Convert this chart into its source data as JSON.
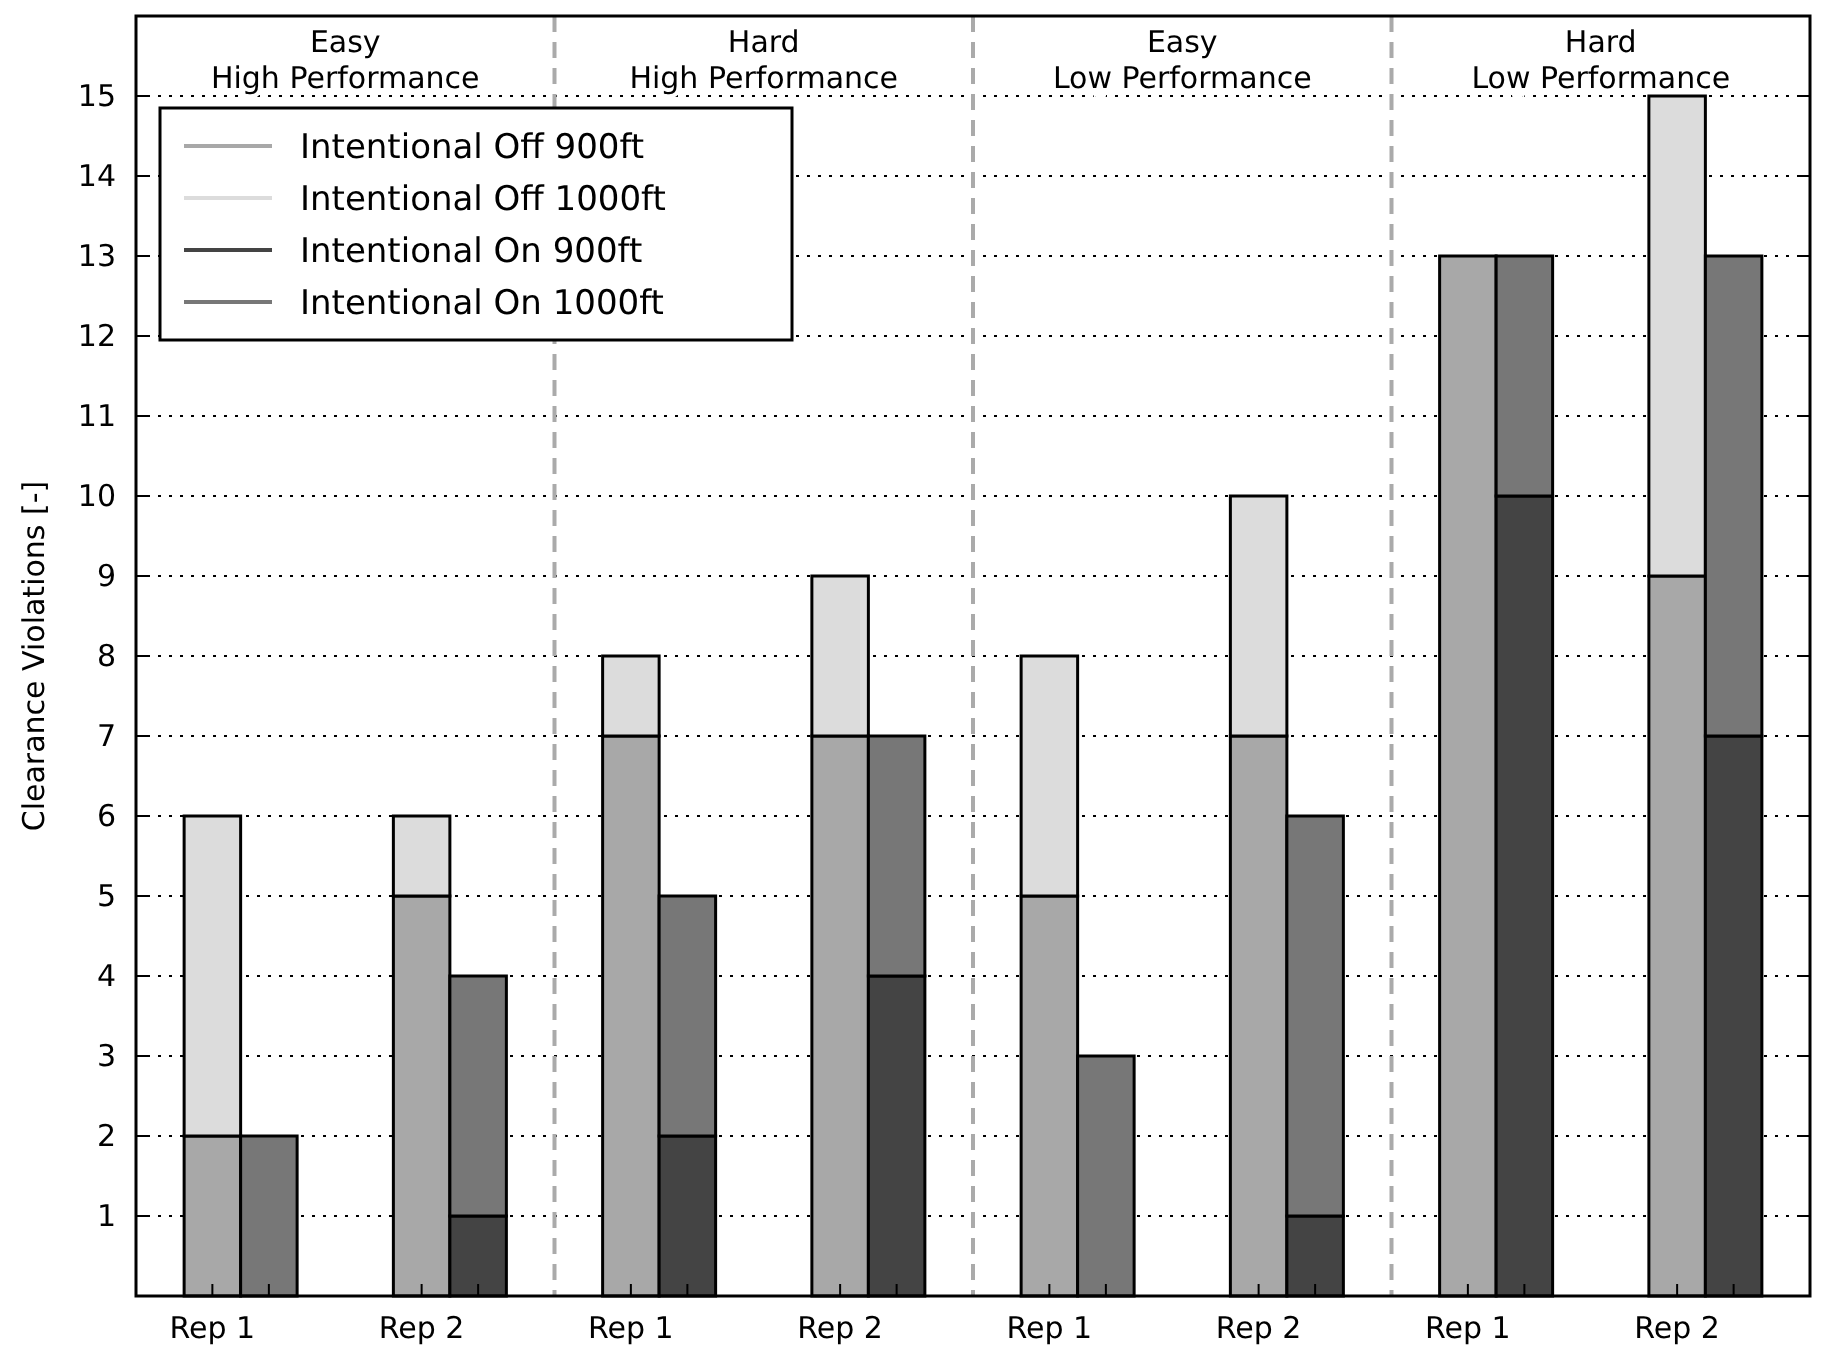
{
  "chart_data": {
    "type": "bar",
    "stacked": true,
    "ylabel": "Clearance Violations [-]",
    "categories": [
      "Rep 1",
      null,
      "Rep 2",
      null,
      "Rep 1",
      null,
      "Rep 2",
      null,
      "Rep 1",
      null,
      "Rep 2",
      null,
      "Rep 1",
      null,
      "Rep 2",
      null
    ],
    "ylim": [
      0,
      16
    ],
    "yticks": [
      1,
      2,
      3,
      4,
      5,
      6,
      7,
      8,
      9,
      10,
      11,
      12,
      13,
      14,
      15
    ],
    "grid": "y",
    "legend": "top left",
    "series": [
      {
        "name": "Intentional Off 900ft",
        "color": "#a8a8a8",
        "values": [
          2,
          null,
          5,
          null,
          7,
          null,
          7,
          null,
          5,
          null,
          7,
          null,
          13,
          null,
          9,
          null
        ]
      },
      {
        "name": "Intentional Off 1000ft",
        "color": "#dcdcdc",
        "values": [
          4,
          null,
          1,
          null,
          1,
          null,
          2,
          null,
          3,
          null,
          3,
          null,
          0,
          null,
          6,
          null
        ]
      },
      {
        "name": "Intentional On 900ft",
        "color": "#444444",
        "values": [
          null,
          0,
          null,
          1,
          null,
          2,
          null,
          4,
          null,
          0,
          null,
          1,
          null,
          10,
          null,
          7
        ]
      },
      {
        "name": "Intentional On 1000ft",
        "color": "#777777",
        "values": [
          null,
          2,
          null,
          3,
          null,
          3,
          null,
          3,
          null,
          3,
          null,
          5,
          null,
          3,
          null,
          6
        ]
      }
    ],
    "annotations": [
      "Easy\nHigh Performance",
      "Hard\nHigh Performance",
      "Easy\nLow Performance",
      "Hard\nLow Performance"
    ]
  }
}
